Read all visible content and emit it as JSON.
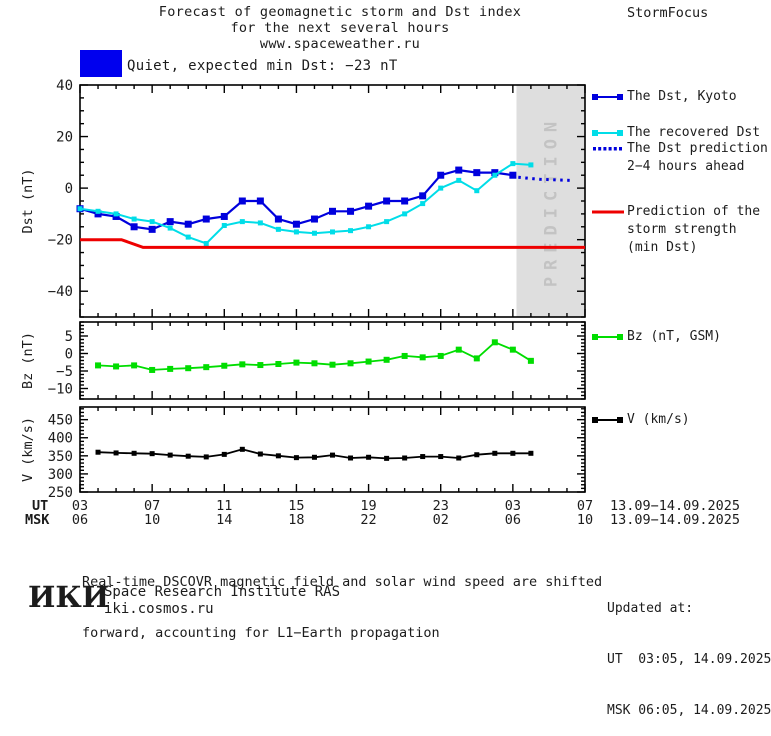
{
  "header": {
    "title_line1": "Forecast of geomagnetic storm and Dst index",
    "title_line2": "for the next several hours",
    "title_line3": "www.spaceweather.ru",
    "brand": "StormFocus"
  },
  "status_banner": {
    "label": "Quiet, expected min Dst: −23 nT",
    "color": "#0000EE"
  },
  "chart_data": [
    {
      "id": "dst",
      "type": "line",
      "ylabel": "Dst (nT)",
      "ylim": [
        -50,
        40
      ],
      "yticks": [
        40,
        20,
        0,
        -20,
        -40
      ],
      "y_minor": 5,
      "y_major": 20,
      "xlim": [
        3,
        31
      ],
      "x_major": 4,
      "prediction_band": {
        "start_hour": 27.2,
        "label": "PREDICTION",
        "fill": "#DEDEDE",
        "text_color": "#C3C3C3"
      },
      "series": [
        {
          "name": "The Dst, Kyoto",
          "color": "#0000DD",
          "style": "solid",
          "marker": "square",
          "marker_size": 7,
          "width": 2.2,
          "x": [
            3,
            4,
            5,
            6,
            7,
            8,
            9,
            10,
            11,
            12,
            13,
            14,
            15,
            16,
            17,
            18,
            19,
            20,
            21,
            22,
            23,
            24,
            25,
            26,
            27
          ],
          "y": [
            -8,
            -10,
            -11,
            -15,
            -16,
            -13,
            -14,
            -12,
            -11,
            -5,
            -5,
            -12,
            -14,
            -12,
            -9,
            -9,
            -7,
            -5,
            -5,
            -3,
            5,
            7,
            6,
            6,
            5
          ]
        },
        {
          "name": "The recovered Dst",
          "color": "#00DDE8",
          "style": "solid",
          "marker": "square",
          "marker_size": 5,
          "width": 2,
          "x": [
            3,
            4,
            5,
            6,
            7,
            8,
            9,
            10,
            11,
            12,
            13,
            14,
            15,
            16,
            17,
            18,
            19,
            20,
            21,
            22,
            23,
            24,
            25,
            26,
            27,
            28
          ],
          "y": [
            -8,
            -9,
            -10,
            -12,
            -13,
            -15.5,
            -19,
            -21.5,
            -14.5,
            -13,
            -13.5,
            -16,
            -17,
            -17.5,
            -17,
            -16.5,
            -15,
            -13,
            -10,
            -6,
            0,
            3,
            -1,
            5,
            9.5,
            9
          ]
        },
        {
          "name": "The Dst prediction 2−4 hours ahead",
          "color": "#0000DD",
          "style": "dotted",
          "marker": "none",
          "marker_size": 0,
          "width": 3,
          "x": [
            27.3,
            28.5,
            30.2
          ],
          "y": [
            4.2,
            3.4,
            3
          ]
        },
        {
          "name": "Prediction of the storm strength (min Dst)",
          "color": "#EE0000",
          "style": "solid",
          "marker": "none",
          "marker_size": 0,
          "width": 3,
          "x": [
            3,
            5.3,
            6.5,
            31
          ],
          "y": [
            -20,
            -20,
            -23,
            -23
          ]
        }
      ]
    },
    {
      "id": "bz",
      "type": "line",
      "ylabel": "Bz (nT)",
      "ylim": [
        -13,
        9
      ],
      "yticks": [
        5,
        0,
        -5,
        -10
      ],
      "y_minor": 1,
      "y_major": 5,
      "xlim": [
        3,
        31
      ],
      "x_major": 4,
      "series": [
        {
          "name": "Bz (nT, GSM)",
          "color": "#00DD00",
          "style": "solid",
          "marker": "square",
          "marker_size": 6,
          "width": 1.8,
          "x": [
            4,
            5,
            6,
            7,
            8,
            9,
            10,
            11,
            12,
            13,
            14,
            15,
            16,
            17,
            18,
            19,
            20,
            21,
            22,
            23,
            24,
            25,
            26,
            27,
            28
          ],
          "y": [
            -3.4,
            -3.7,
            -3.4,
            -4.7,
            -4.4,
            -4.2,
            -3.9,
            -3.5,
            -3.1,
            -3.3,
            -3.0,
            -2.6,
            -2.8,
            -3.2,
            -2.8,
            -2.3,
            -1.8,
            -0.7,
            -1.1,
            -0.7,
            1.1,
            -1.4,
            3.2,
            1.1,
            -2.1
          ]
        }
      ]
    },
    {
      "id": "v",
      "type": "line",
      "ylabel": "V (km/s)",
      "ylim": [
        250,
        485
      ],
      "yticks": [
        450,
        400,
        350,
        300,
        250
      ],
      "y_minor": 10,
      "y_major": 50,
      "xlim": [
        3,
        31
      ],
      "x_major": 4,
      "series": [
        {
          "name": "V (km/s)",
          "color": "#000000",
          "style": "solid",
          "marker": "square",
          "marker_size": 5,
          "width": 1.8,
          "x": [
            4,
            5,
            6,
            7,
            8,
            9,
            10,
            11,
            12,
            13,
            14,
            15,
            16,
            17,
            18,
            19,
            20,
            21,
            22,
            23,
            24,
            25,
            26,
            27,
            28
          ],
          "y": [
            360,
            358,
            357,
            356,
            352,
            349,
            347,
            354,
            368,
            355,
            350,
            345,
            346,
            352,
            344,
            346,
            343,
            344,
            348,
            348,
            344,
            353,
            357,
            357,
            357
          ]
        }
      ]
    }
  ],
  "legend": {
    "main": [
      {
        "lines": [
          "The Dst, Kyoto"
        ],
        "color": "#0000DD",
        "swatch": "line-squares"
      },
      {
        "lines": [
          "The recovered Dst"
        ],
        "color": "#00DDE8",
        "swatch": "line-squares"
      },
      {
        "lines": [
          "The Dst prediction",
          "2−4 hours ahead"
        ],
        "color": "#0000DD",
        "swatch": "dotted"
      },
      {
        "lines": [
          "Prediction of the",
          "storm strength",
          "(min Dst)"
        ],
        "color": "#EE0000",
        "swatch": "line"
      }
    ],
    "bz": {
      "lines": [
        "Bz (nT, GSM)"
      ],
      "color": "#00DD00",
      "swatch": "line-squares"
    },
    "v": {
      "lines": [
        "V (km/s)"
      ],
      "color": "#000000",
      "swatch": "line-squares"
    }
  },
  "axis_footer": {
    "ut_label": "UT",
    "msk_label": "MSK",
    "ut_hours": [
      "03",
      "07",
      "11",
      "15",
      "19",
      "23",
      "03",
      "07"
    ],
    "msk_hours": [
      "06",
      "10",
      "14",
      "18",
      "22",
      "02",
      "06",
      "10"
    ],
    "ut_daterange": "13.09−14.09.2025",
    "msk_daterange": "13.09−14.09.2025"
  },
  "footer": {
    "note_line1": "Real-time DSCOVR magnetic field and solar wind speed are shifted",
    "note_line2": "forward, accounting for L1−Earth propagation",
    "logo": "ИКИ",
    "institute": "Space Research Institute RAS",
    "website": "iki.cosmos.ru",
    "updated_label": "Updated at:",
    "updated_ut": "UT  03:05, 14.09.2025",
    "updated_msk": "MSK 06:05, 14.09.2025"
  }
}
